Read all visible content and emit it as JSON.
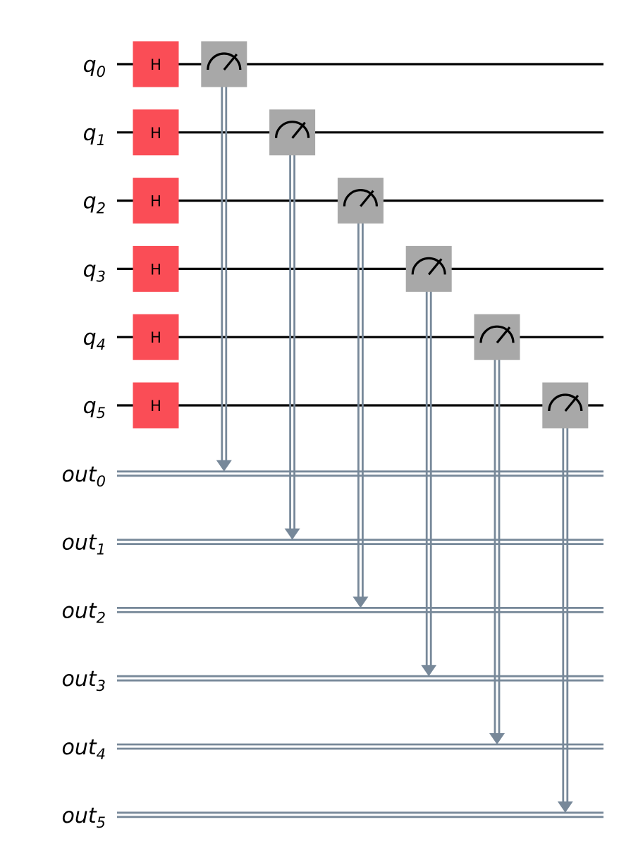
{
  "circuit": {
    "qubits": [
      {
        "name": "q",
        "index": "0"
      },
      {
        "name": "q",
        "index": "1"
      },
      {
        "name": "q",
        "index": "2"
      },
      {
        "name": "q",
        "index": "3"
      },
      {
        "name": "q",
        "index": "4"
      },
      {
        "name": "q",
        "index": "5"
      }
    ],
    "clbits": [
      {
        "name": "out",
        "index": "0"
      },
      {
        "name": "out",
        "index": "1"
      },
      {
        "name": "out",
        "index": "2"
      },
      {
        "name": "out",
        "index": "3"
      },
      {
        "name": "out",
        "index": "4"
      },
      {
        "name": "out",
        "index": "5"
      }
    ],
    "gates": [
      {
        "kind": "H",
        "label": "H",
        "qubit": 0,
        "column": 0
      },
      {
        "kind": "H",
        "label": "H",
        "qubit": 1,
        "column": 0
      },
      {
        "kind": "H",
        "label": "H",
        "qubit": 2,
        "column": 0
      },
      {
        "kind": "H",
        "label": "H",
        "qubit": 3,
        "column": 0
      },
      {
        "kind": "H",
        "label": "H",
        "qubit": 4,
        "column": 0
      },
      {
        "kind": "H",
        "label": "H",
        "qubit": 5,
        "column": 0
      }
    ],
    "measurements": [
      {
        "qubit": 0,
        "clbit": 0,
        "column": 1
      },
      {
        "qubit": 1,
        "clbit": 1,
        "column": 2
      },
      {
        "qubit": 2,
        "clbit": 2,
        "column": 3
      },
      {
        "qubit": 3,
        "clbit": 3,
        "column": 4
      },
      {
        "qubit": 4,
        "clbit": 4,
        "column": 5
      },
      {
        "qubit": 5,
        "clbit": 5,
        "column": 6
      }
    ],
    "colors": {
      "h_gate": "#fa4d56",
      "measure_gate": "#a8a8a8",
      "quantum_wire": "#000000",
      "classical_wire": "#778899",
      "text": "#000000"
    }
  }
}
